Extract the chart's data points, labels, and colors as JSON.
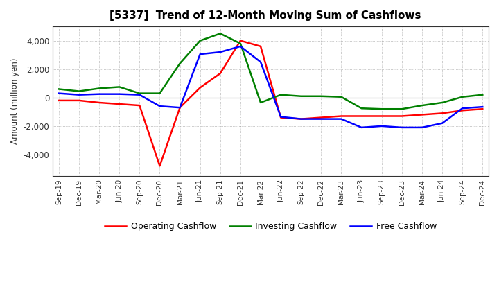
{
  "title": "[5337]  Trend of 12-Month Moving Sum of Cashflows",
  "ylabel": "Amount (million yen)",
  "xlabels": [
    "Sep-19",
    "Dec-19",
    "Mar-20",
    "Jun-20",
    "Sep-20",
    "Dec-20",
    "Mar-21",
    "Jun-21",
    "Sep-21",
    "Dec-21",
    "Mar-22",
    "Jun-22",
    "Sep-22",
    "Dec-22",
    "Mar-23",
    "Jun-23",
    "Sep-23",
    "Dec-23",
    "Mar-24",
    "Jun-24",
    "Sep-24",
    "Dec-24"
  ],
  "operating": [
    -200,
    -200,
    -350,
    -450,
    -550,
    -4800,
    -700,
    700,
    1700,
    4000,
    3600,
    -1400,
    -1500,
    -1400,
    -1300,
    -1300,
    -1300,
    -1300,
    -1200,
    -1100,
    -900,
    -800
  ],
  "investing": [
    600,
    450,
    650,
    750,
    300,
    300,
    2400,
    4000,
    4500,
    3800,
    -350,
    200,
    100,
    100,
    50,
    -750,
    -800,
    -800,
    -550,
    -350,
    50,
    200
  ],
  "free": [
    300,
    200,
    250,
    250,
    200,
    -600,
    -700,
    3050,
    3200,
    3600,
    2500,
    -1350,
    -1500,
    -1500,
    -1500,
    -2100,
    -2000,
    -2100,
    -2100,
    -1800,
    -750,
    -650
  ],
  "ylim": [
    -5500,
    5000
  ],
  "yticks": [
    -4000,
    -2000,
    0,
    2000,
    4000
  ],
  "colors": {
    "operating": "#ff0000",
    "investing": "#008000",
    "free": "#0000ff"
  },
  "legend_labels": [
    "Operating Cashflow",
    "Investing Cashflow",
    "Free Cashflow"
  ],
  "background_color": "#ffffff",
  "plot_bg_color": "#ffffff",
  "grid_color": "#999999"
}
